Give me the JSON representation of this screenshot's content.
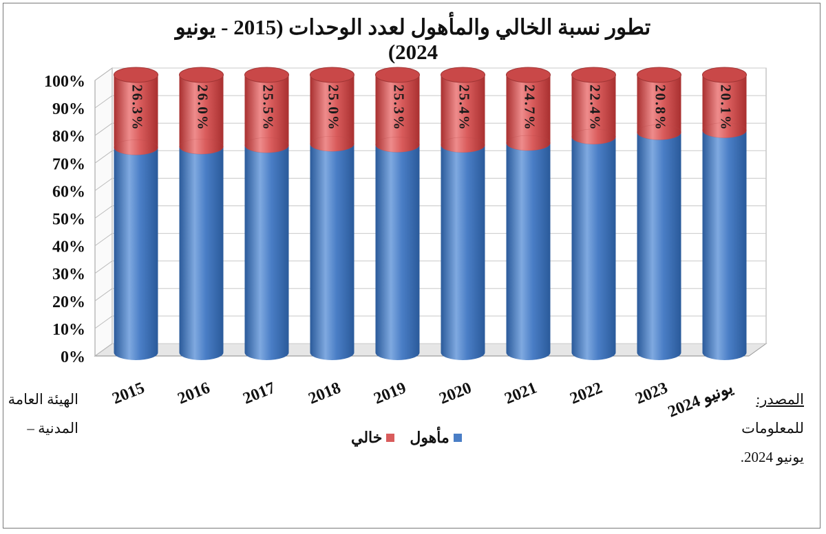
{
  "title_line1": "تطور نسبة الخالي والمأهول لعدد الوحدات (2015 - يونيو",
  "title_line2": "2024)",
  "source": {
    "label": "المصدر:",
    "left_lines": [
      "الهيئة العامة",
      "المدنية –"
    ],
    "right_lines": [
      "للمعلومات",
      "يونيو 2024."
    ]
  },
  "colors": {
    "vacant": "#d95c5c",
    "occupied": "#4a7ec6"
  },
  "chart_data": {
    "type": "bar",
    "stacked": true,
    "categories": [
      "2015",
      "2016",
      "2017",
      "2018",
      "2019",
      "2020",
      "2021",
      "2022",
      "2023",
      "يونيو 2024"
    ],
    "series": [
      {
        "name": "مأهول",
        "values": [
          73.7,
          74.0,
          74.5,
          75.0,
          74.7,
          74.6,
          75.3,
          77.6,
          79.2,
          79.9
        ]
      },
      {
        "name": "خالي",
        "values": [
          26.3,
          26.0,
          25.5,
          25.0,
          25.3,
          25.4,
          24.7,
          22.4,
          20.8,
          20.1
        ]
      }
    ],
    "data_labels": [
      "26.3%",
      "26.0%",
      "25.5%",
      "25.0%",
      "25.3%",
      "25.4%",
      "24.7%",
      "22.4%",
      "20.8%",
      "20.1%"
    ],
    "y_ticks": [
      "0%",
      "10%",
      "20%",
      "30%",
      "40%",
      "50%",
      "60%",
      "70%",
      "80%",
      "90%",
      "100%"
    ],
    "ylim": [
      0,
      100
    ],
    "legend_position": "bottom",
    "grid": true
  }
}
